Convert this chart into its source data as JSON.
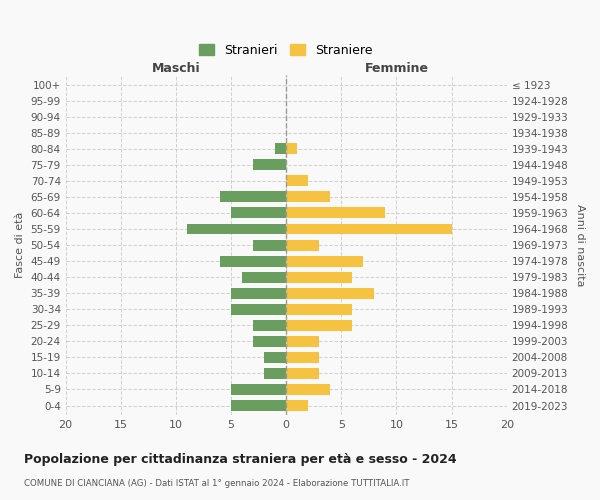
{
  "age_groups": [
    "0-4",
    "5-9",
    "10-14",
    "15-19",
    "20-24",
    "25-29",
    "30-34",
    "35-39",
    "40-44",
    "45-49",
    "50-54",
    "55-59",
    "60-64",
    "65-69",
    "70-74",
    "75-79",
    "80-84",
    "85-89",
    "90-94",
    "95-99",
    "100+"
  ],
  "birth_years": [
    "2019-2023",
    "2014-2018",
    "2009-2013",
    "2004-2008",
    "1999-2003",
    "1994-1998",
    "1989-1993",
    "1984-1988",
    "1979-1983",
    "1974-1978",
    "1969-1973",
    "1964-1968",
    "1959-1963",
    "1954-1958",
    "1949-1953",
    "1944-1948",
    "1939-1943",
    "1934-1938",
    "1929-1933",
    "1924-1928",
    "≤ 1923"
  ],
  "maschi": [
    5,
    5,
    2,
    2,
    3,
    3,
    5,
    5,
    4,
    6,
    3,
    9,
    5,
    6,
    0,
    3,
    1,
    0,
    0,
    0,
    0
  ],
  "femmine": [
    2,
    4,
    3,
    3,
    3,
    6,
    6,
    8,
    6,
    7,
    3,
    15,
    9,
    4,
    2,
    0,
    1,
    0,
    0,
    0,
    0
  ],
  "color_maschi": "#6a9e5e",
  "color_femmine": "#f5c242",
  "title": "Popolazione per cittadinanza straniera per età e sesso - 2024",
  "subtitle": "COMUNE DI CIANCIANA (AG) - Dati ISTAT al 1° gennaio 2024 - Elaborazione TUTTITALIA.IT",
  "xlabel_left": "Maschi",
  "xlabel_right": "Femmine",
  "ylabel_left": "Fasce di età",
  "ylabel_right": "Anni di nascita",
  "legend_maschi": "Stranieri",
  "legend_femmine": "Straniere",
  "xlim": 20,
  "background_color": "#f9f9f9",
  "grid_color": "#cccccc"
}
